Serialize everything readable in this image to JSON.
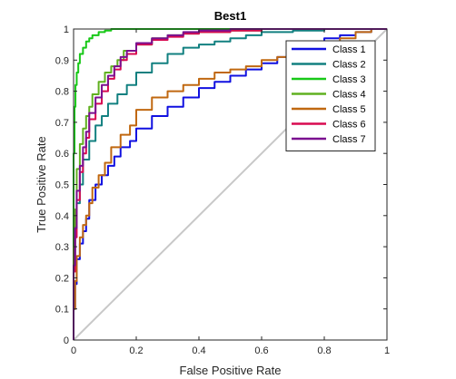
{
  "chart_data": {
    "type": "line",
    "title": "Best1",
    "xlabel": "False Positive Rate",
    "ylabel": "True Positive Rate",
    "xlim": [
      0,
      1
    ],
    "ylim": [
      0,
      1
    ],
    "xticks": [
      "0",
      "0.2",
      "0.4",
      "0.6",
      "0.8",
      "1"
    ],
    "yticks": [
      "0",
      "0.1",
      "0.2",
      "0.3",
      "0.4",
      "0.5",
      "0.6",
      "0.7",
      "0.8",
      "0.9",
      "1"
    ],
    "grid": false,
    "legend_position": "top-right",
    "diagonal_reference": {
      "x": [
        0,
        1
      ],
      "y": [
        0,
        1
      ],
      "color": "#c8c8c8"
    },
    "series": [
      {
        "name": "Class 1",
        "color": "#1010e0",
        "x": [
          0,
          0.005,
          0.01,
          0.02,
          0.03,
          0.04,
          0.05,
          0.07,
          0.09,
          0.11,
          0.13,
          0.15,
          0.18,
          0.2,
          0.25,
          0.3,
          0.35,
          0.4,
          0.45,
          0.5,
          0.55,
          0.6,
          0.65,
          0.7,
          0.75,
          0.8,
          0.85,
          0.9,
          0.95,
          1
        ],
        "y": [
          0,
          0.1,
          0.18,
          0.26,
          0.31,
          0.35,
          0.39,
          0.45,
          0.5,
          0.53,
          0.56,
          0.59,
          0.62,
          0.64,
          0.68,
          0.72,
          0.75,
          0.78,
          0.81,
          0.83,
          0.85,
          0.87,
          0.89,
          0.91,
          0.93,
          0.95,
          0.97,
          0.98,
          0.99,
          1
        ]
      },
      {
        "name": "Class 2",
        "color": "#128080",
        "x": [
          0,
          0.005,
          0.01,
          0.02,
          0.03,
          0.05,
          0.07,
          0.09,
          0.11,
          0.14,
          0.17,
          0.2,
          0.25,
          0.3,
          0.35,
          0.4,
          0.45,
          0.5,
          0.55,
          0.6,
          0.7,
          0.8,
          0.9,
          1
        ],
        "y": [
          0,
          0.25,
          0.36,
          0.44,
          0.5,
          0.58,
          0.64,
          0.69,
          0.72,
          0.76,
          0.79,
          0.82,
          0.86,
          0.89,
          0.92,
          0.94,
          0.95,
          0.96,
          0.97,
          0.98,
          0.99,
          0.995,
          1,
          1
        ]
      },
      {
        "name": "Class 3",
        "color": "#18c818",
        "x": [
          0,
          0.003,
          0.006,
          0.01,
          0.015,
          0.02,
          0.03,
          0.04,
          0.05,
          0.06,
          0.08,
          0.1,
          0.12,
          0.15,
          0.2,
          0.3,
          1
        ],
        "y": [
          0,
          0.6,
          0.75,
          0.82,
          0.86,
          0.89,
          0.92,
          0.94,
          0.96,
          0.97,
          0.98,
          0.99,
          0.995,
          1,
          1,
          1,
          1
        ]
      },
      {
        "name": "Class 4",
        "color": "#60b020",
        "x": [
          0,
          0.005,
          0.01,
          0.02,
          0.03,
          0.04,
          0.05,
          0.06,
          0.08,
          0.1,
          0.12,
          0.14,
          0.16,
          0.2,
          0.25,
          0.3,
          0.35,
          0.4,
          0.5,
          0.6,
          0.7,
          0.8,
          1
        ],
        "y": [
          0,
          0.3,
          0.42,
          0.55,
          0.63,
          0.68,
          0.72,
          0.75,
          0.79,
          0.83,
          0.86,
          0.88,
          0.9,
          0.93,
          0.95,
          0.97,
          0.98,
          0.985,
          0.99,
          0.995,
          1,
          1,
          1
        ]
      },
      {
        "name": "Class 5",
        "color": "#c06810",
        "x": [
          0,
          0.005,
          0.01,
          0.02,
          0.03,
          0.04,
          0.05,
          0.06,
          0.08,
          0.1,
          0.12,
          0.15,
          0.18,
          0.2,
          0.25,
          0.3,
          0.35,
          0.4,
          0.45,
          0.5,
          0.55,
          0.6,
          0.65,
          0.7,
          0.75,
          0.8,
          0.85,
          0.9,
          0.95,
          1
        ],
        "y": [
          0,
          0.1,
          0.19,
          0.27,
          0.33,
          0.37,
          0.4,
          0.44,
          0.49,
          0.53,
          0.57,
          0.62,
          0.66,
          0.69,
          0.74,
          0.78,
          0.8,
          0.82,
          0.84,
          0.86,
          0.87,
          0.88,
          0.9,
          0.91,
          0.93,
          0.94,
          0.96,
          0.97,
          0.99,
          1
        ]
      },
      {
        "name": "Class 6",
        "color": "#d80a50",
        "x": [
          0,
          0.005,
          0.01,
          0.02,
          0.03,
          0.04,
          0.05,
          0.07,
          0.09,
          0.11,
          0.13,
          0.15,
          0.17,
          0.2,
          0.25,
          0.3,
          0.35,
          0.4,
          0.5,
          0.6,
          0.7,
          0.8,
          0.9,
          1
        ],
        "y": [
          0,
          0.22,
          0.33,
          0.45,
          0.54,
          0.6,
          0.65,
          0.71,
          0.76,
          0.8,
          0.84,
          0.87,
          0.9,
          0.92,
          0.95,
          0.965,
          0.975,
          0.985,
          0.99,
          0.995,
          1,
          1,
          1,
          1
        ]
      },
      {
        "name": "Class 7",
        "color": "#7a1090",
        "x": [
          0,
          0.005,
          0.01,
          0.02,
          0.03,
          0.04,
          0.05,
          0.07,
          0.09,
          0.11,
          0.13,
          0.15,
          0.17,
          0.2,
          0.25,
          0.3,
          0.35,
          0.4,
          0.5,
          0.6,
          0.7,
          0.8,
          0.9,
          1
        ],
        "y": [
          0,
          0.24,
          0.36,
          0.48,
          0.56,
          0.62,
          0.67,
          0.73,
          0.78,
          0.82,
          0.85,
          0.88,
          0.91,
          0.93,
          0.955,
          0.97,
          0.98,
          0.99,
          0.995,
          1,
          1,
          1,
          1,
          1
        ]
      }
    ]
  }
}
